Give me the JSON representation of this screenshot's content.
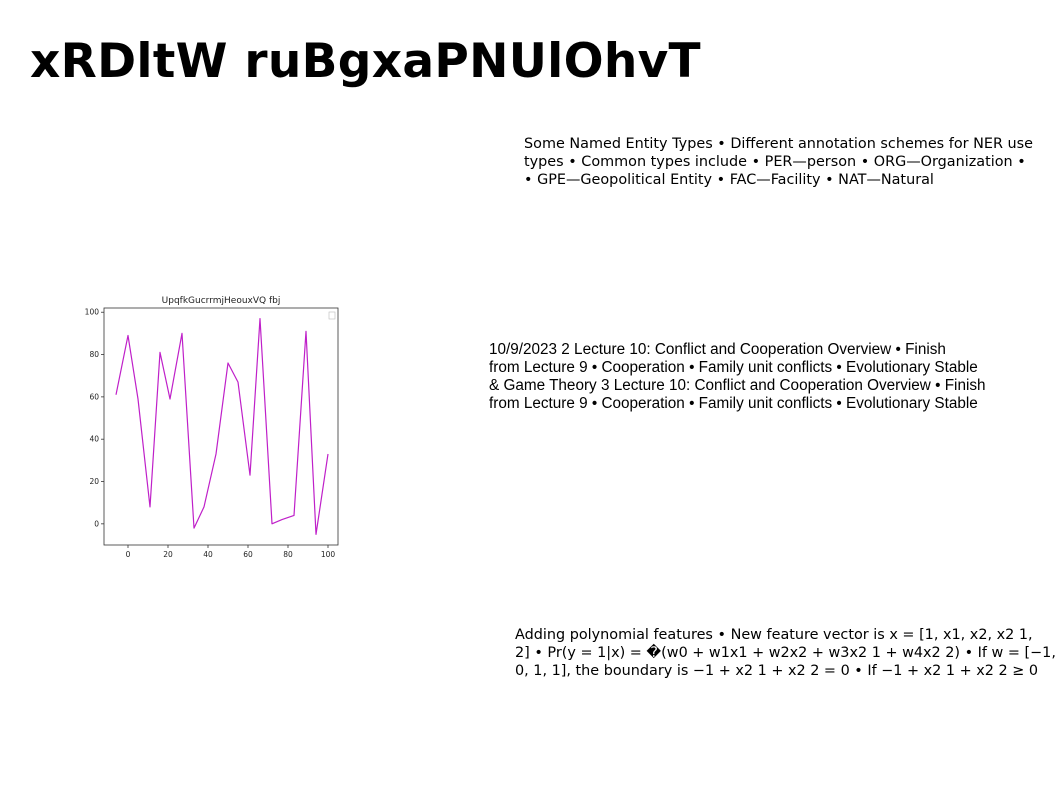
{
  "slide": {
    "title": "xRDltW ruBgxaPNUlOhvT"
  },
  "ner_block": {
    "lines": [
      "Some Named Entity Types • Different annotation schemes for NER use",
      "types • Common types include • PER—person • ORG—Organization •",
      "• GPE—Geopolitical Entity • FAC—Facility • NAT—Natural"
    ]
  },
  "lecture_block": {
    "lines": [
      "10/9/2023 2 Lecture 10: Conflict and Cooperation Overview • Finish",
      "from Lecture 9 • Cooperation • Family unit conflicts • Evolutionary Stable",
      "& Game Theory 3 Lecture 10: Conflict and Cooperation Overview • Finish",
      "from Lecture 9 • Cooperation • Family unit conflicts • Evolutionary Stable"
    ]
  },
  "poly_block": {
    "lines": [
      "Adding polynomial features • New feature vector is x = [1, x1, x2, x2 1,",
      "2] • Pr(y = 1|x) = �(w0 + w1x1 + w2x2 + w3x2 1 + w4x2 2) • If w = [−1,",
      "0, 1, 1], the boundary is −1 + x2 1 + x2 2 = 0 • If −1 + x2 1 + x2 2 ≥ 0"
    ]
  },
  "chart_data": {
    "type": "line",
    "title": "UpqfkGucrrmjHeouxVQ fbj",
    "x": [
      -6,
      0,
      5,
      11,
      16,
      21,
      27,
      33,
      38,
      44,
      50,
      55,
      61,
      66,
      72,
      77,
      83,
      89,
      94,
      100
    ],
    "series": [
      {
        "values": [
          61,
          89,
          59,
          8,
          81,
          59,
          90,
          -2,
          8,
          33,
          76,
          67,
          23,
          97,
          0,
          2,
          4,
          91,
          -5,
          33
        ]
      }
    ],
    "color": "#bf20c9",
    "xlim": [
      -12,
      105
    ],
    "ylim": [
      -10,
      102
    ],
    "xticks": [
      0,
      20,
      40,
      60,
      80,
      100
    ],
    "yticks": [
      0,
      20,
      40,
      60,
      80,
      100
    ],
    "grid": false,
    "legend": "top-right"
  }
}
